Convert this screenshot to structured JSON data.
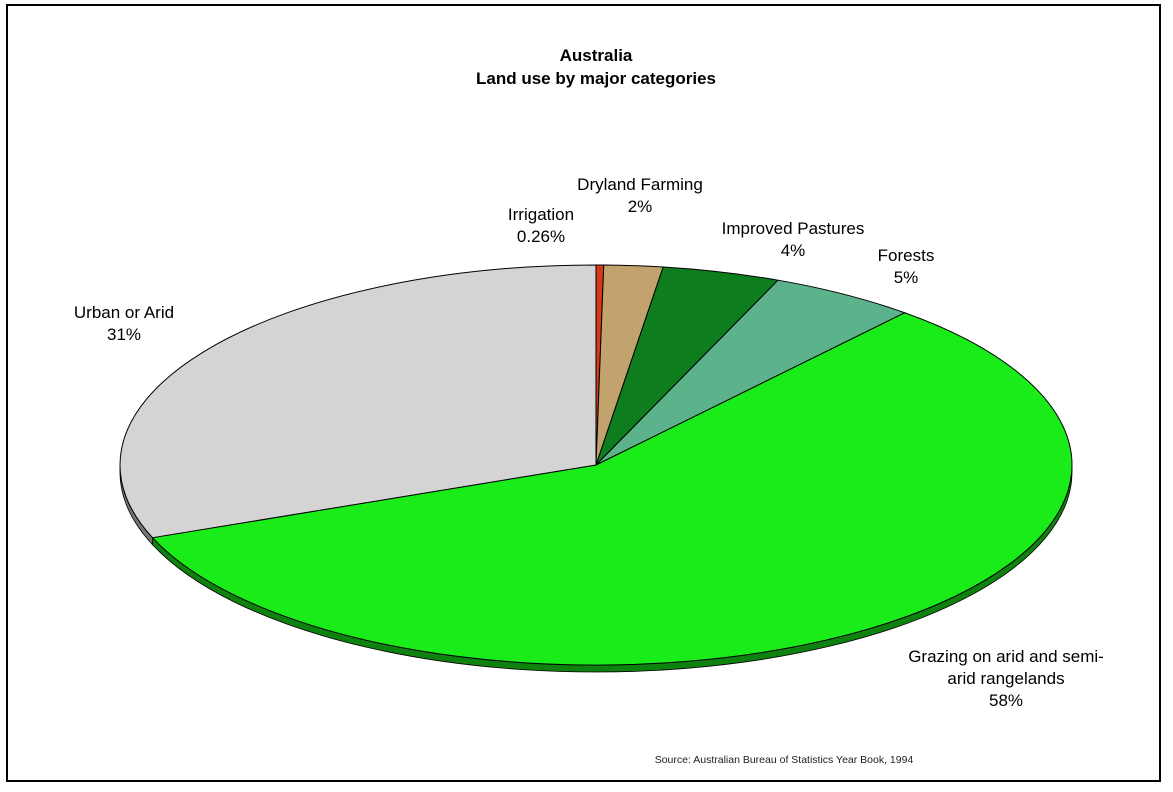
{
  "chart_data": {
    "type": "pie",
    "title": "Australia",
    "subtitle": "Land use by major categories",
    "source": "Source: Australian Bureau of Statistics Year Book, 1994",
    "slices": [
      {
        "key": "irrigation",
        "label_lines": [
          "Irrigation",
          "0.26%"
        ],
        "value": 0.26,
        "color": "#d43a1a"
      },
      {
        "key": "dryland-farming",
        "label_lines": [
          "Dryland Farming",
          "2%"
        ],
        "value": 2,
        "color": "#c2a36d"
      },
      {
        "key": "improved-pastures",
        "label_lines": [
          "Improved Pastures",
          "4%"
        ],
        "value": 4,
        "color": "#0e7d1e"
      },
      {
        "key": "forests",
        "label_lines": [
          "Forests",
          "5%"
        ],
        "value": 5,
        "color": "#5cb38b"
      },
      {
        "key": "grazing",
        "label_lines": [
          "Grazing on arid and semi-",
          "arid rangelands",
          "58%"
        ],
        "value": 58,
        "color": "#1aec1a"
      },
      {
        "key": "urban-or-arid",
        "label_lines": [
          "Urban or Arid",
          "31%"
        ],
        "value": 31,
        "color": "#d4d4d4"
      }
    ]
  }
}
